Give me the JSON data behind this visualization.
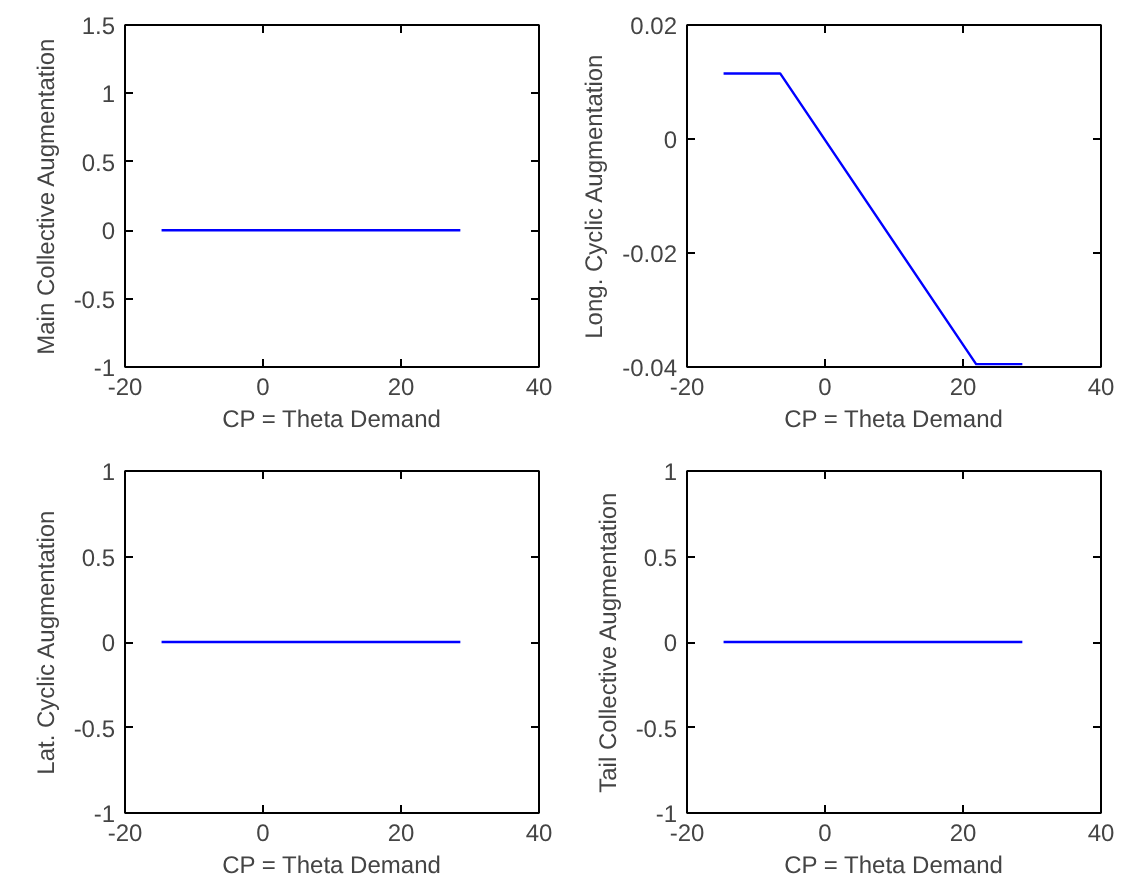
{
  "chart_data": [
    {
      "type": "line",
      "xlabel": "CP = Theta Demand",
      "ylabel": "Main Collective Augmentation",
      "x": [
        -14.7,
        28.6
      ],
      "values": [
        0,
        0
      ],
      "color": "#0000ff",
      "xlim": [
        -20,
        40
      ],
      "xticks": [
        -20,
        0,
        20,
        40
      ],
      "ylim": [
        -1,
        1.5
      ],
      "yticks": [
        -1,
        -0.5,
        0,
        0.5,
        1,
        1.5
      ],
      "grid": false
    },
    {
      "type": "line",
      "xlabel": "CP = Theta Demand",
      "ylabel": "Long. Cyclic Augmentation",
      "x": [
        -14.7,
        -6.5,
        21.9,
        28.6
      ],
      "values": [
        0.0115,
        0.0115,
        -0.0395,
        -0.0395
      ],
      "color": "#0000ff",
      "xlim": [
        -20,
        40
      ],
      "xticks": [
        -20,
        0,
        20,
        40
      ],
      "ylim": [
        -0.04,
        0.02
      ],
      "yticks": [
        -0.04,
        -0.02,
        0,
        0.02
      ],
      "grid": false
    },
    {
      "type": "line",
      "xlabel": "CP = Theta Demand",
      "ylabel": "Lat. Cyclic Augmentation",
      "x": [
        -14.7,
        28.6
      ],
      "values": [
        0,
        0
      ],
      "color": "#0000ff",
      "xlim": [
        -20,
        40
      ],
      "xticks": [
        -20,
        0,
        20,
        40
      ],
      "ylim": [
        -1,
        1
      ],
      "yticks": [
        -1,
        -0.5,
        0,
        0.5,
        1
      ],
      "grid": false
    },
    {
      "type": "line",
      "xlabel": "CP = Theta Demand",
      "ylabel": "Tail Collective Augmentation",
      "x": [
        -14.7,
        28.6
      ],
      "values": [
        0,
        0
      ],
      "color": "#0000ff",
      "xlim": [
        -20,
        40
      ],
      "xticks": [
        -20,
        0,
        20,
        40
      ],
      "ylim": [
        -1,
        1
      ],
      "yticks": [
        -1,
        -0.5,
        0,
        0.5,
        1
      ],
      "grid": false
    }
  ]
}
